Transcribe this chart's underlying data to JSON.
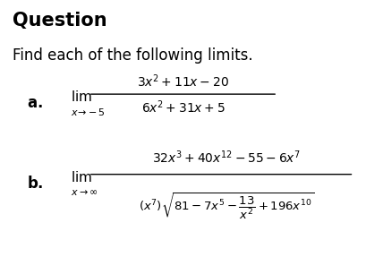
{
  "title": "Question",
  "subtitle": "Find each of the following limits.",
  "part_a_label": "a.",
  "part_a_lim_main": "\\lim",
  "part_a_lim_sub": "x\\!\\to\\!-5",
  "part_a_num": "3x^2+11x-20",
  "part_a_den": "6x^2+31x+5",
  "part_b_label": "b.",
  "part_b_lim_main": "\\lim",
  "part_b_lim_sub": "x\\to\\infty",
  "part_b_num": "32x^3+40x^{12}-55-6x^7",
  "part_b_den": "(x^7)\\sqrt{81-7x^5-\\dfrac{13}{x^2}+196x^{10}}",
  "bg_color": "#ffffff",
  "text_color": "#000000",
  "title_fontsize": 15,
  "subtitle_fontsize": 12,
  "math_fontsize": 11
}
